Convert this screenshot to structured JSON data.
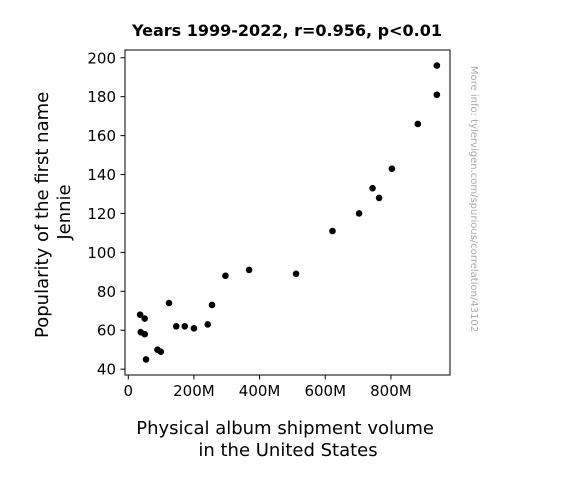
{
  "chart_data": {
    "type": "scatter",
    "title": "Years 1999-2022, r=0.956, p<0.01",
    "xlabel_lines": [
      "Physical album shipment volume",
      "in the United States"
    ],
    "ylabel_lines": [
      "Popularity of the first name",
      "Jennie"
    ],
    "watermark": "More info: tylervigen.com/spurious/correlation/43102",
    "xlim": [
      -10000000,
      980000000
    ],
    "ylim": [
      37,
      204
    ],
    "xticks": [
      {
        "value": 0,
        "label": "0"
      },
      {
        "value": 200000000,
        "label": "200M"
      },
      {
        "value": 400000000,
        "label": "400M"
      },
      {
        "value": 600000000,
        "label": "600M"
      },
      {
        "value": 800000000,
        "label": "800M"
      }
    ],
    "yticks": [
      {
        "value": 40,
        "label": "40"
      },
      {
        "value": 60,
        "label": "60"
      },
      {
        "value": 80,
        "label": "80"
      },
      {
        "value": 100,
        "label": "100"
      },
      {
        "value": 120,
        "label": "120"
      },
      {
        "value": 140,
        "label": "140"
      },
      {
        "value": 160,
        "label": "160"
      },
      {
        "value": 180,
        "label": "180"
      },
      {
        "value": 200,
        "label": "200"
      }
    ],
    "grid": false,
    "point_color": "#000000",
    "points": [
      {
        "x": 940000000,
        "y": 196
      },
      {
        "x": 940000000,
        "y": 181
      },
      {
        "x": 882000000,
        "y": 166
      },
      {
        "x": 803000000,
        "y": 143
      },
      {
        "x": 744000000,
        "y": 133
      },
      {
        "x": 764000000,
        "y": 128
      },
      {
        "x": 703000000,
        "y": 120
      },
      {
        "x": 622000000,
        "y": 111
      },
      {
        "x": 368000000,
        "y": 91
      },
      {
        "x": 296000000,
        "y": 88
      },
      {
        "x": 511000000,
        "y": 89
      },
      {
        "x": 124000000,
        "y": 74
      },
      {
        "x": 255000000,
        "y": 73
      },
      {
        "x": 36000000,
        "y": 68
      },
      {
        "x": 50000000,
        "y": 66
      },
      {
        "x": 242000000,
        "y": 63
      },
      {
        "x": 146000000,
        "y": 62
      },
      {
        "x": 172000000,
        "y": 62
      },
      {
        "x": 200000000,
        "y": 61
      },
      {
        "x": 38000000,
        "y": 59
      },
      {
        "x": 50000000,
        "y": 58
      },
      {
        "x": 89000000,
        "y": 50
      },
      {
        "x": 99000000,
        "y": 49
      },
      {
        "x": 54000000,
        "y": 45
      }
    ]
  }
}
